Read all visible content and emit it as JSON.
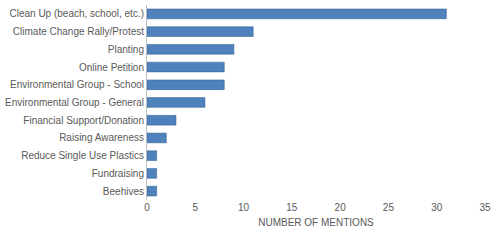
{
  "chart_data": {
    "type": "bar",
    "orientation": "horizontal",
    "categories": [
      "Clean Up (beach, school, etc.)",
      "Climate Change Rally/Protest",
      "Planting",
      "Online Petition",
      "Environmental Group - School",
      "Environmental Group - General",
      "Financial Support/Donation",
      "Raising Awareness",
      "Reduce Single Use Plastics",
      "Fundraising",
      "Beehives"
    ],
    "values": [
      31,
      11,
      9,
      8,
      8,
      6,
      3,
      2,
      1,
      1,
      1
    ],
    "color": "#4f81bd",
    "xlabel": "NUMBER OF MENTIONS",
    "xlim": [
      0,
      35
    ],
    "xticks": [
      0,
      5,
      10,
      15,
      20,
      25,
      30,
      35
    ],
    "grid": false
  }
}
